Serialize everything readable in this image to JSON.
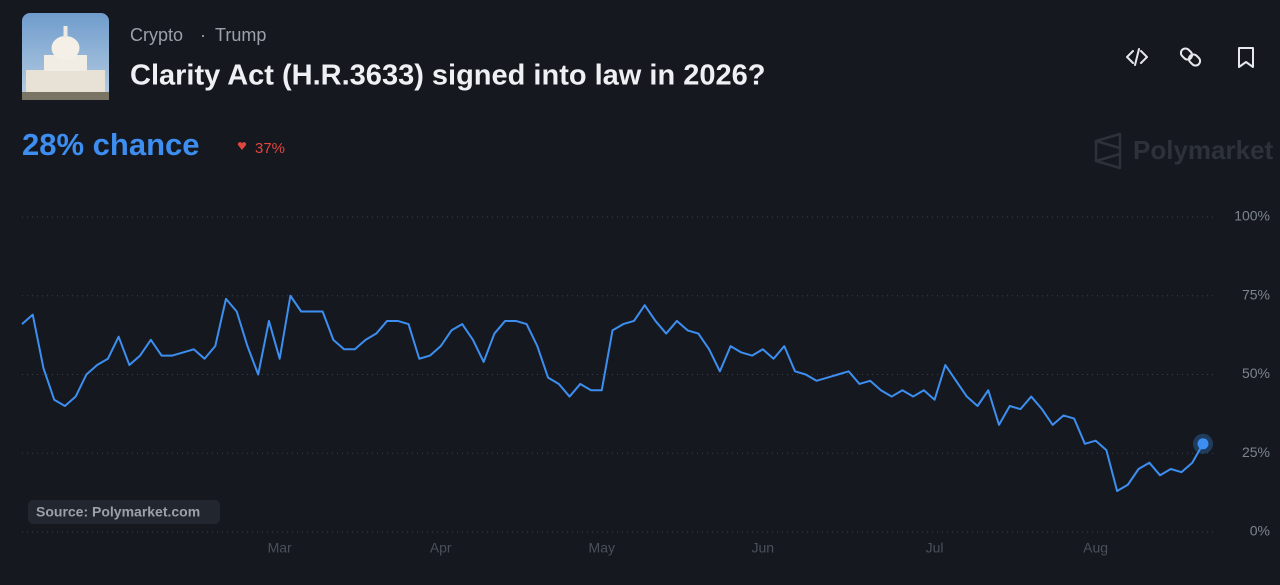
{
  "header": {
    "tags": [
      "Crypto",
      "Trump"
    ],
    "title": "Clarity Act (H.R.3633) signed into law in 2026?"
  },
  "chance": "28% chance",
  "change": "37%",
  "brand": "Polymarket",
  "source": "Source: Polymarket.com",
  "chart_data": {
    "type": "line",
    "color": "#3d8ef0",
    "grid": true,
    "categories": [
      null,
      null,
      null,
      null,
      null,
      null,
      null,
      null,
      null,
      null,
      null,
      null,
      null,
      null,
      null,
      null,
      null,
      null,
      null,
      null,
      null,
      null,
      null,
      null,
      "Mar",
      null,
      null,
      null,
      null,
      null,
      null,
      null,
      null,
      null,
      null,
      null,
      null,
      null,
      null,
      "Apr",
      null,
      null,
      null,
      null,
      null,
      null,
      null,
      null,
      null,
      null,
      null,
      null,
      null,
      null,
      "May",
      null,
      null,
      null,
      null,
      null,
      null,
      null,
      null,
      null,
      null,
      null,
      null,
      null,
      null,
      "Jun",
      null,
      null,
      null,
      null,
      null,
      null,
      null,
      null,
      null,
      null,
      null,
      null,
      null,
      null,
      null,
      "Jul",
      null,
      null,
      null,
      null,
      null,
      null,
      null,
      null,
      null,
      null,
      null,
      null,
      null,
      null,
      "Aug",
      null,
      null,
      null,
      null,
      null,
      null,
      null,
      null,
      null,
      null
    ],
    "values": [
      66,
      69,
      52,
      42,
      40,
      43,
      50,
      53,
      55,
      62,
      53,
      56,
      61,
      56,
      56,
      57,
      58,
      55,
      59,
      74,
      70,
      59,
      50,
      67,
      55,
      75,
      70,
      70,
      70,
      61,
      58,
      58,
      61,
      63,
      67,
      67,
      66,
      55,
      56,
      59,
      64,
      66,
      61,
      54,
      63,
      67,
      67,
      66,
      59,
      49,
      47,
      43,
      47,
      45,
      45,
      64,
      66,
      67,
      72,
      67,
      63,
      67,
      64,
      63,
      58,
      51,
      59,
      57,
      56,
      58,
      55,
      59,
      51,
      50,
      48,
      49,
      50,
      51,
      47,
      48,
      45,
      43,
      45,
      43,
      45,
      42,
      53,
      48,
      43,
      40,
      45,
      34,
      40,
      39,
      43,
      39,
      34,
      37,
      36,
      28,
      29,
      26,
      13,
      15,
      20,
      22,
      18,
      20,
      19,
      22,
      28
    ],
    "ylim": [
      0,
      100
    ],
    "yticks": [
      {
        "value": 0,
        "label": "0%"
      },
      {
        "value": 25,
        "label": "25%"
      },
      {
        "value": 50,
        "label": "50%"
      },
      {
        "value": 75,
        "label": "75%"
      },
      {
        "value": 100,
        "label": "100%"
      }
    ]
  }
}
